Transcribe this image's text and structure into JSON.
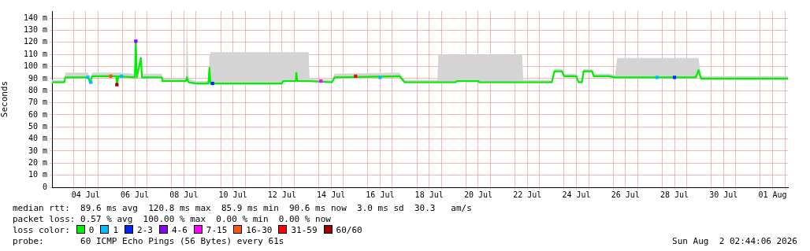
{
  "chart_data": {
    "type": "line",
    "ylabel": "Seconds",
    "legend_title": "loss color:",
    "legend": "bottom",
    "grid": true,
    "marker": "none",
    "line_style": "solid",
    "xlim": [
      "2026-07-03T03:00",
      "2026-08-02T03:00"
    ],
    "xticks": [
      {
        "value": "2026-07-04",
        "label": null
      },
      {
        "value": "2026-07-04T12:00",
        "label": "04 Jul"
      },
      {
        "value": "2026-07-05",
        "label": null
      },
      {
        "value": "2026-07-06",
        "label": null
      },
      {
        "value": "2026-07-06T12:00",
        "label": "06 Jul"
      },
      {
        "value": "2026-07-07",
        "label": null
      },
      {
        "value": "2026-07-08",
        "label": null
      },
      {
        "value": "2026-07-08T12:00",
        "label": "08 Jul"
      },
      {
        "value": "2026-07-09",
        "label": null
      },
      {
        "value": "2026-07-10",
        "label": null
      },
      {
        "value": "2026-07-10T12:00",
        "label": "10 Jul"
      },
      {
        "value": "2026-07-11",
        "label": null
      },
      {
        "value": "2026-07-12",
        "label": null
      },
      {
        "value": "2026-07-12T12:00",
        "label": "12 Jul"
      },
      {
        "value": "2026-07-13",
        "label": null
      },
      {
        "value": "2026-07-14",
        "label": null
      },
      {
        "value": "2026-07-14T12:00",
        "label": "14 Jul"
      },
      {
        "value": "2026-07-15",
        "label": null
      },
      {
        "value": "2026-07-16",
        "label": null
      },
      {
        "value": "2026-07-16T12:00",
        "label": "16 Jul"
      },
      {
        "value": "2026-07-17",
        "label": null
      },
      {
        "value": "2026-07-18",
        "label": null
      },
      {
        "value": "2026-07-18T12:00",
        "label": "18 Jul"
      },
      {
        "value": "2026-07-19",
        "label": null
      },
      {
        "value": "2026-07-20",
        "label": null
      },
      {
        "value": "2026-07-20T12:00",
        "label": "20 Jul"
      },
      {
        "value": "2026-07-21",
        "label": null
      },
      {
        "value": "2026-07-22",
        "label": null
      },
      {
        "value": "2026-07-22T12:00",
        "label": "22 Jul"
      },
      {
        "value": "2026-07-23",
        "label": null
      },
      {
        "value": "2026-07-24",
        "label": null
      },
      {
        "value": "2026-07-24T12:00",
        "label": "24 Jul"
      },
      {
        "value": "2026-07-25",
        "label": null
      },
      {
        "value": "2026-07-26",
        "label": null
      },
      {
        "value": "2026-07-26T12:00",
        "label": "26 Jul"
      },
      {
        "value": "2026-07-27",
        "label": null
      },
      {
        "value": "2026-07-28",
        "label": null
      },
      {
        "value": "2026-07-28T12:00",
        "label": "28 Jul"
      },
      {
        "value": "2026-07-29",
        "label": null
      },
      {
        "value": "2026-07-30",
        "label": null
      },
      {
        "value": "2026-07-30T12:00",
        "label": "30 Jul"
      },
      {
        "value": "2026-07-31",
        "label": null
      },
      {
        "value": "2026-08-01",
        "label": null
      },
      {
        "value": "2026-08-01T12:00",
        "label": "01 Aug"
      },
      {
        "value": "2026-08-02",
        "label": null
      }
    ],
    "ylim": [
      0,
      146
    ],
    "yticks": [
      0,
      {
        "value": 10,
        "label": "10 m"
      },
      {
        "value": 20,
        "label": "20 m"
      },
      {
        "value": 30,
        "label": "30 m"
      },
      {
        "value": 40,
        "label": "40 m"
      },
      {
        "value": 50,
        "label": "50 m"
      },
      {
        "value": 60,
        "label": "60 m"
      },
      {
        "value": 70,
        "label": "70 m"
      },
      {
        "value": 80,
        "label": "80 m"
      },
      {
        "value": 90,
        "label": "90 m"
      },
      {
        "value": 100,
        "label": "100 m"
      },
      {
        "value": 110,
        "label": "110 m"
      },
      {
        "value": 120,
        "label": "120 m"
      },
      {
        "value": 130,
        "label": "130 m"
      },
      {
        "value": 140,
        "label": "140 m"
      }
    ],
    "x": [
      "2026-07-03T03:00",
      "2026-07-03T15:00",
      "2026-07-03T16:00",
      "2026-07-04T14:30",
      "2026-07-04T16:00",
      "2026-07-04T18:30",
      "2026-07-05T18:00",
      "2026-07-05T18:30",
      "2026-07-05T20:00",
      "2026-07-06T12:00",
      "2026-07-06T13:00",
      "2026-07-06T14:00",
      "2026-07-06T18:00",
      "2026-07-06T19:00",
      "2026-07-07T14:30",
      "2026-07-07T15:00",
      "2026-07-08T14:00",
      "2026-07-08T15:00",
      "2026-07-08T16:30",
      "2026-07-09T00:00",
      "2026-07-09T12:00",
      "2026-07-09T13:00",
      "2026-07-09T14:00",
      "2026-07-12T12:00",
      "2026-07-12T13:00",
      "2026-07-13T01:30",
      "2026-07-13T02:00",
      "2026-07-13T03:00",
      "2026-07-13T14:00",
      "2026-07-13T15:00",
      "2026-07-14T13:00",
      "2026-07-14T15:30",
      "2026-07-17T07:00",
      "2026-07-17T12:00",
      "2026-07-18T20:00",
      "2026-07-18T21:00",
      "2026-07-19T14:00",
      "2026-07-19T15:00",
      "2026-07-20T12:00",
      "2026-07-20T13:00",
      "2026-07-22T07:00",
      "2026-07-22T08:00",
      "2026-07-23T12:00",
      "2026-07-23T14:30",
      "2026-07-23T22:00",
      "2026-07-24T00:00",
      "2026-07-24T12:00",
      "2026-07-24T14:00",
      "2026-07-24T17:30",
      "2026-07-24T19:00",
      "2026-07-25T03:30",
      "2026-07-25T05:00",
      "2026-07-25T20:00",
      "2026-07-26T02:00",
      "2026-07-26T04:00",
      "2026-07-29T09:00",
      "2026-07-29T11:30",
      "2026-07-29T14:00",
      "2026-08-02T03:00"
    ],
    "series": [
      {
        "name": "0",
        "color": "#00ee00",
        "values": [
          87,
          87,
          91,
          91,
          87,
          92,
          92,
          85,
          92,
          91,
          120,
          91,
          107,
          91,
          91,
          88,
          88,
          91,
          87,
          86,
          86,
          99,
          86,
          86,
          88,
          88,
          95,
          88,
          88,
          88,
          87,
          91,
          92,
          87,
          87,
          87,
          87,
          88,
          88,
          87,
          87,
          87,
          87,
          96,
          96,
          92,
          92,
          87,
          87,
          96,
          96,
          92,
          92,
          91,
          91,
          91,
          97,
          90,
          90
        ],
        "lower": [
          86,
          86,
          90,
          90,
          86,
          91,
          91,
          84,
          91,
          90,
          119,
          90,
          106,
          90,
          90,
          87,
          87,
          90,
          86,
          85,
          85,
          98,
          85,
          85,
          87,
          87,
          94,
          87,
          87,
          87,
          86,
          90,
          91,
          86,
          86,
          86,
          86,
          87,
          87,
          86,
          86,
          86,
          86,
          95,
          95,
          91,
          91,
          86,
          86,
          95,
          95,
          91,
          91,
          90,
          90,
          90,
          96,
          89,
          89
        ],
        "upper": [
          89,
          89,
          95,
          95,
          90,
          95,
          95,
          95,
          95,
          94,
          128,
          94,
          110,
          94,
          94,
          90,
          90,
          145,
          90,
          88,
          88,
          108,
          112,
          112,
          112,
          112,
          112,
          112,
          112,
          90,
          89,
          94,
          95,
          89,
          89,
          110,
          110,
          110,
          110,
          110,
          110,
          89,
          89,
          98,
          98,
          94,
          94,
          89,
          89,
          98,
          98,
          94,
          94,
          93,
          107,
          107,
          107,
          92,
          92
        ]
      },
      {
        "name": "1",
        "type": "scatter",
        "color": "#00bbff",
        "marker": "square",
        "x": [
          "2026-07-04T14:00",
          "2026-07-04T17:00",
          "2026-07-05T23:00",
          "2026-07-16T12:00",
          "2026-07-27T19:00"
        ],
        "values": [
          91,
          87,
          92,
          91,
          91
        ]
      },
      {
        "name": "2-3",
        "type": "scatter",
        "color": "#0022ff",
        "marker": "square",
        "x": [
          "2026-07-09T16:00",
          "2026-07-28T12:00"
        ],
        "values": [
          86,
          91
        ]
      },
      {
        "name": "4-6",
        "type": "scatter",
        "color": "#8a00ff",
        "marker": "square",
        "x": [
          "2026-07-06T13:00"
        ],
        "values": [
          121
        ]
      },
      {
        "name": "7-15",
        "type": "scatter",
        "color": "#ff00ff",
        "marker": "square",
        "x": [
          "2026-07-14T02:00"
        ],
        "values": [
          88
        ]
      },
      {
        "name": "16-30",
        "type": "scatter",
        "color": "#ff5500",
        "marker": "square",
        "x": [
          "2026-07-05T12:30"
        ],
        "values": [
          92
        ]
      },
      {
        "name": "31-59",
        "type": "scatter",
        "color": "#ff0000",
        "marker": "square",
        "x": [
          "2026-07-15T12:00"
        ],
        "values": [
          92
        ]
      },
      {
        "name": "60/60",
        "type": "scatter",
        "color": "#a10000",
        "marker": "square",
        "x": [
          "2026-07-05T18:30"
        ],
        "values": [
          85
        ]
      }
    ],
    "annotations": [
      "median rtt:  89.6 ms avg  120.8 ms max  85.9 ms min  90.6 ms now  3.0 ms sd  30.3   am/s",
      "packet loss: 0.57 % avg  100.00 % max  0.00 % min  0.00 % now",
      "probe:       60 ICMP Echo Pings (56 Bytes) every 61s",
      "Sun Aug  2 02:44:06 2026"
    ]
  }
}
